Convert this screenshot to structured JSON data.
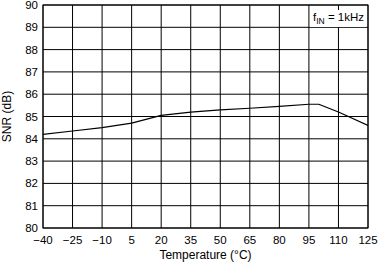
{
  "chart_data": {
    "type": "line",
    "x_label": "Temperature (°C)",
    "y_label": "SNR (dB)",
    "annotation": {
      "base": "f",
      "subscript": "IN",
      "rest": " = 1kHz"
    },
    "x": [
      -40,
      -25,
      -10,
      5,
      20,
      35,
      50,
      65,
      80,
      95,
      100,
      110,
      125
    ],
    "values": [
      84.2,
      84.35,
      84.5,
      84.7,
      85.05,
      85.2,
      85.3,
      85.37,
      85.45,
      85.55,
      85.55,
      85.2,
      84.6
    ],
    "color": "#000000",
    "xlim": [
      -40,
      125
    ],
    "xticks": [
      -40,
      -25,
      -10,
      5,
      20,
      35,
      50,
      65,
      80,
      95,
      110,
      125
    ],
    "ylim": [
      80,
      90
    ],
    "yticks": [
      80,
      81,
      82,
      83,
      84,
      85,
      86,
      87,
      88,
      89,
      90
    ],
    "grid": true
  }
}
